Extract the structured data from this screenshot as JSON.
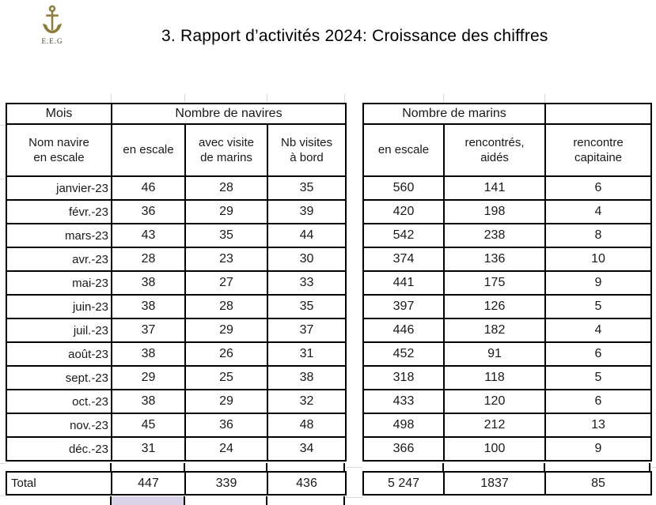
{
  "header": {
    "title": "3. Rapport d’activités 2024: Croissance des chiffres",
    "logo_icon": "anchor",
    "logo_caption": "E.E.G",
    "logo_color": "#8d7d3c"
  },
  "navires_table": {
    "corner_header": "Mois",
    "group_header": "Nombre de navires",
    "sub_headers": [
      "Nom navire\nen escale",
      "en escale",
      "avec visite\nde marins",
      "Nb visites\nà bord"
    ],
    "rows": [
      [
        "janvier-23",
        "46",
        "28",
        "35"
      ],
      [
        "févr.-23",
        "36",
        "29",
        "39"
      ],
      [
        "mars-23",
        "43",
        "35",
        "44"
      ],
      [
        "avr.-23",
        "28",
        "23",
        "30"
      ],
      [
        "mai-23",
        "38",
        "27",
        "33"
      ],
      [
        "juin-23",
        "38",
        "28",
        "35"
      ],
      [
        "juil.-23",
        "37",
        "29",
        "37"
      ],
      [
        "août-23",
        "38",
        "26",
        "31"
      ],
      [
        "sept.-23",
        "29",
        "25",
        "38"
      ],
      [
        "oct.-23",
        "38",
        "29",
        "32"
      ],
      [
        "nov.-23",
        "45",
        "36",
        "48"
      ],
      [
        "déc.-23",
        "31",
        "24",
        "34"
      ]
    ],
    "total": [
      "Total",
      "447",
      "339",
      "436"
    ]
  },
  "marins_table": {
    "group_header": "Nombre de marins",
    "sub_headers": [
      "en escale",
      "rencontrés,\naidés",
      "rencontre\ncapitaine"
    ],
    "rows": [
      [
        "560",
        "141",
        "6"
      ],
      [
        "420",
        "198",
        "4"
      ],
      [
        "542",
        "238",
        "8"
      ],
      [
        "374",
        "136",
        "10"
      ],
      [
        "441",
        "175",
        "9"
      ],
      [
        "397",
        "126",
        "5"
      ],
      [
        "446",
        "182",
        "4"
      ],
      [
        "452",
        "91",
        "6"
      ],
      [
        "318",
        "118",
        "5"
      ],
      [
        "433",
        "120",
        "6"
      ],
      [
        "498",
        "212",
        "13"
      ],
      [
        "366",
        "100",
        "9"
      ]
    ],
    "total": [
      "5 247",
      "1837",
      "85"
    ]
  },
  "colors": {
    "border": "#000000",
    "gridline": "#d9d9d9",
    "highlight_cell": "#d9d2e9",
    "logo": "#8d7d3c"
  }
}
